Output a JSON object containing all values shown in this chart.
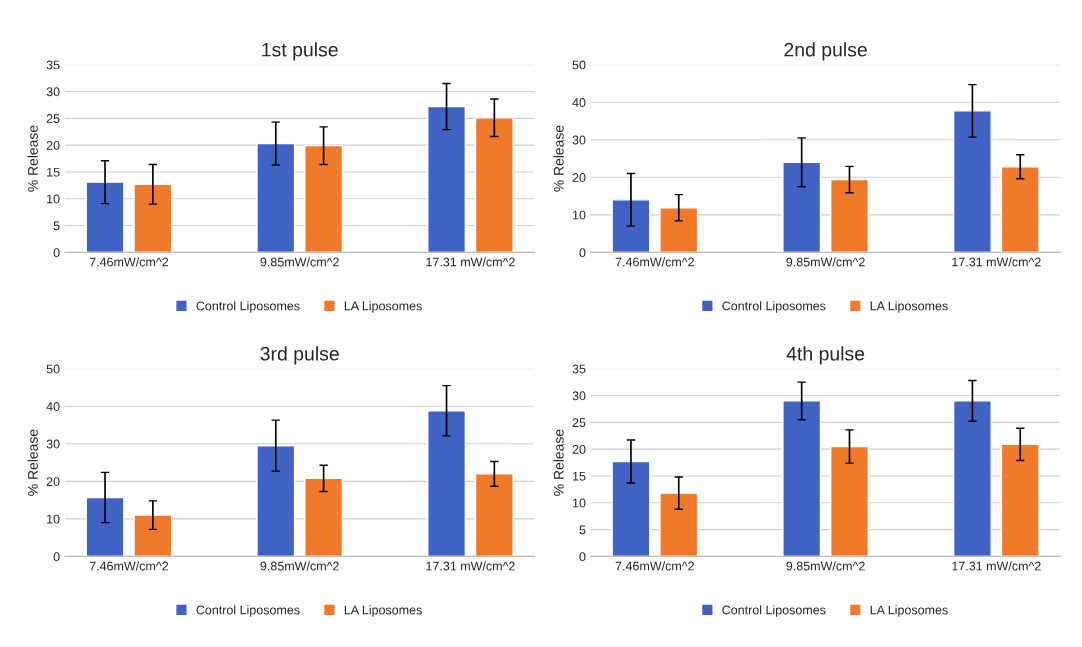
{
  "chart_data": [
    {
      "type": "bar",
      "title": "1st pulse",
      "ylabel": "% Release",
      "categories": [
        "7.46mW/cm^2",
        "9.85mW/cm^2",
        "17.31 mW/cm^2"
      ],
      "ylim": [
        0,
        35
      ],
      "yticks": [
        0,
        5,
        10,
        15,
        20,
        25,
        30,
        35
      ],
      "grid": "y",
      "legend": "bottom",
      "series": [
        {
          "name": "Control Liposomes",
          "color": "#3f62c4",
          "values": [
            13.1,
            20.3,
            27.2
          ],
          "errors": [
            4,
            4,
            4.3
          ]
        },
        {
          "name": "LA Liposomes",
          "color": "#f07a2a",
          "values": [
            12.7,
            19.9,
            25.1
          ],
          "errors": [
            3.7,
            3.5,
            3.5
          ]
        }
      ]
    },
    {
      "type": "bar",
      "title": "2nd pulse",
      "ylabel": "% Release",
      "categories": [
        "7.46mW/cm^2",
        "9.85mW/cm^2",
        "17.31 mW/cm^2"
      ],
      "ylim": [
        0,
        50
      ],
      "yticks": [
        0,
        10,
        20,
        30,
        40,
        50
      ],
      "grid": "y",
      "legend": "bottom",
      "series": [
        {
          "name": "Control Liposomes",
          "color": "#3f62c4",
          "values": [
            14,
            24,
            37.7
          ],
          "errors": [
            7,
            6.5,
            7
          ]
        },
        {
          "name": "LA Liposomes",
          "color": "#f07a2a",
          "values": [
            11.9,
            19.4,
            22.8
          ],
          "errors": [
            3.5,
            3.5,
            3.2
          ]
        }
      ]
    },
    {
      "type": "bar",
      "title": "3rd pulse",
      "ylabel": "% Release",
      "categories": [
        "7.46mW/cm^2",
        "9.85mW/cm^2",
        "17.31 mW/cm^2"
      ],
      "ylim": [
        0,
        50
      ],
      "yticks": [
        0,
        10,
        20,
        30,
        40,
        50
      ],
      "grid": "y",
      "legend": "bottom",
      "series": [
        {
          "name": "Control Liposomes",
          "color": "#3f62c4",
          "values": [
            15.7,
            29.5,
            38.8
          ],
          "errors": [
            6.7,
            6.8,
            6.7
          ]
        },
        {
          "name": "LA Liposomes",
          "color": "#f07a2a",
          "values": [
            11,
            20.8,
            22
          ],
          "errors": [
            3.8,
            3.5,
            3.3
          ]
        }
      ]
    },
    {
      "type": "bar",
      "title": "4th pulse",
      "ylabel": "% Release",
      "categories": [
        "7.46mW/cm^2",
        "9.85mW/cm^2",
        "17.31 mW/cm^2"
      ],
      "ylim": [
        0,
        35
      ],
      "yticks": [
        0,
        5,
        10,
        15,
        20,
        25,
        30,
        35
      ],
      "grid": "y",
      "legend": "bottom",
      "series": [
        {
          "name": "Control Liposomes",
          "color": "#3f62c4",
          "values": [
            17.7,
            29,
            29
          ],
          "errors": [
            4,
            3.5,
            3.8
          ]
        },
        {
          "name": "LA Liposomes",
          "color": "#f07a2a",
          "values": [
            11.8,
            20.5,
            20.9
          ],
          "errors": [
            3,
            3.1,
            3
          ]
        }
      ]
    }
  ]
}
